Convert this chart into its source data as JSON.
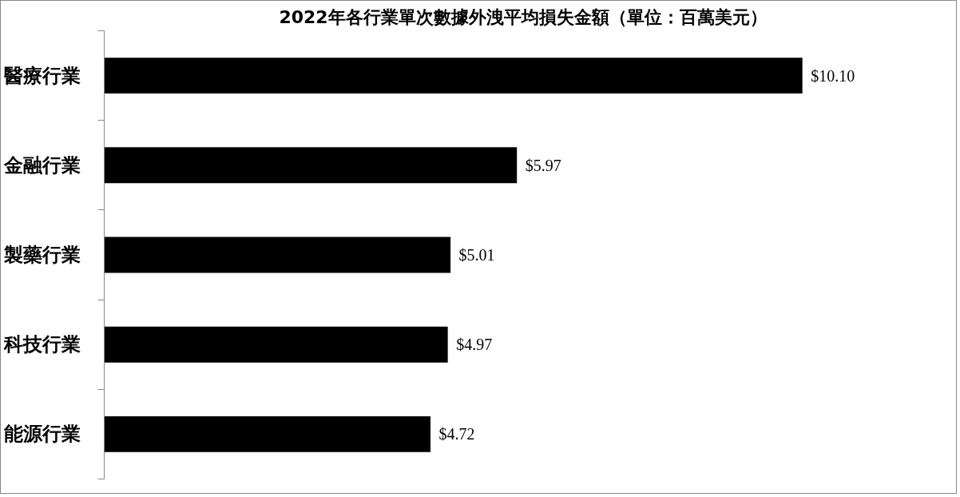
{
  "chart_data": {
    "type": "bar",
    "orientation": "horizontal",
    "title": "2022年各行業單次數據外洩平均損失金額（單位：百萬美元）",
    "categories": [
      "醫療行業",
      "金融行業",
      "製藥行業",
      "科技行業",
      "能源行業"
    ],
    "values": [
      10.1,
      5.97,
      5.01,
      4.97,
      4.72
    ],
    "value_labels": [
      "$10.10",
      "$5.97",
      "$5.01",
      "$4.97",
      "$4.72"
    ],
    "color": "#000000"
  }
}
